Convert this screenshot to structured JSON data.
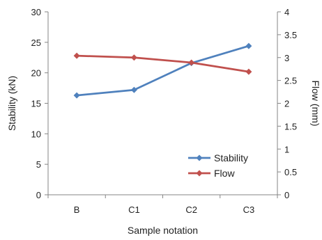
{
  "chart_data": {
    "type": "line",
    "categories": [
      "B",
      "C1",
      "C2",
      "C3"
    ],
    "xlabel": "Sample notation",
    "ylabel_left": "Stability (kN)",
    "ylabel_right": "Flow (mm)",
    "ylim_left": [
      0,
      30
    ],
    "ylim_right": [
      0,
      4
    ],
    "yticks_left": [
      "0",
      "5",
      "10",
      "15",
      "20",
      "25",
      "30"
    ],
    "yticks_right": [
      "0",
      "0.5",
      "1",
      "1.5",
      "2",
      "2.5",
      "3",
      "3.5",
      "4"
    ],
    "grid": false,
    "legend_position": "bottom-right",
    "series": [
      {
        "name": "Stability",
        "axis": "left",
        "color": "#4F81BD",
        "marker": "diamond",
        "values": [
          16.3,
          17.2,
          21.6,
          24.4
        ]
      },
      {
        "name": "Flow",
        "axis": "right",
        "color": "#C0504D",
        "marker": "diamond",
        "values": [
          3.04,
          3.0,
          2.89,
          2.69
        ]
      }
    ]
  }
}
